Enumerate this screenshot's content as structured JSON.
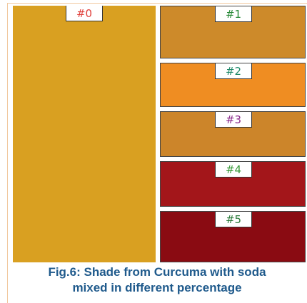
{
  "figure": {
    "panels": [
      {
        "label": "#0",
        "color": "#d9a021",
        "label_color": "#e0403c"
      },
      {
        "label": "#1",
        "color": "#cd8a2a",
        "label_color": "#2a8a3a"
      },
      {
        "label": "#2",
        "color": "#ef8d22",
        "label_color": "#1f8a6a"
      },
      {
        "label": "#3",
        "color": "#cc852a",
        "label_color": "#8a2a8a"
      },
      {
        "label": "#4",
        "color": "#a3161a",
        "label_color": "#3a9a3a"
      },
      {
        "label": "#5",
        "color": "#8a0b12",
        "label_color": "#2a7a3a"
      }
    ],
    "caption": [
      "Fig.6: Shade from Curcuma with soda",
      "mixed in different percentage"
    ]
  }
}
